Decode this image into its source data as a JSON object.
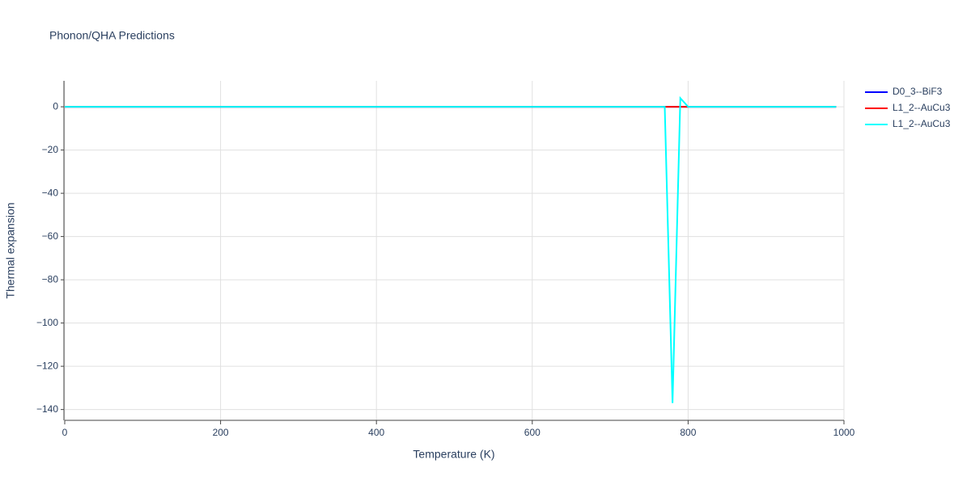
{
  "chart_data": {
    "type": "line",
    "title": "Phonon/QHA Predictions",
    "x_label": "Temperature (K)",
    "y_label": "Thermal expansion",
    "x": [
      0,
      760,
      770,
      780,
      790,
      800,
      810,
      990
    ],
    "series": [
      {
        "name": "D0_3--BiF3",
        "color": "#0000ff",
        "values": [
          0,
          0,
          0,
          0,
          0,
          0,
          0,
          0
        ]
      },
      {
        "name": "L1_2--AuCu3",
        "color": "#ff0000",
        "values": [
          0,
          0,
          0,
          0,
          0,
          0,
          0,
          0
        ]
      },
      {
        "name": "L1_2--AuCu3",
        "color": "#00ffff",
        "values": [
          0,
          0,
          0,
          -137,
          4,
          0,
          0,
          0
        ]
      }
    ],
    "xlim": [
      0,
      1000
    ],
    "xticks": [
      0,
      200,
      400,
      600,
      800,
      1000
    ],
    "ylim": [
      -145,
      12
    ],
    "yticks": [
      {
        "value": -140,
        "label": "−140"
      },
      {
        "value": -120,
        "label": "−120"
      },
      {
        "value": -100,
        "label": "−100"
      },
      {
        "value": -80,
        "label": "−80"
      },
      {
        "value": -60,
        "label": "−60"
      },
      {
        "value": -40,
        "label": "−40"
      },
      {
        "value": -20,
        "label": "−20"
      },
      0
    ],
    "grid": true,
    "legend": "right"
  }
}
